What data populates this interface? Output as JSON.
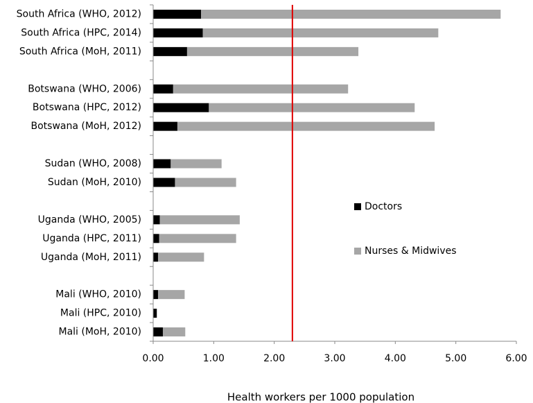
{
  "chart_data": {
    "type": "stacked-barh",
    "x_label": "Health workers per 1000 population",
    "categories": [
      "South Africa (WHO, 2012)",
      "South Africa (HPC, 2014)",
      "South Africa (MoH, 2011)",
      null,
      "Botswana (WHO, 2006)",
      "Botswana (HPC, 2012)",
      "Botswana (MoH, 2012)",
      null,
      "Sudan (WHO, 2008)",
      "Sudan (MoH, 2010)",
      null,
      "Uganda (WHO, 2005)",
      "Uganda (HPC, 2011)",
      "Uganda (MoH, 2011)",
      null,
      "Mali (WHO, 2010)",
      "Mali (HPC, 2010)",
      "Mali (MoH, 2010)"
    ],
    "series": [
      {
        "name": "Doctors",
        "color": "#000000",
        "values": [
          0.79,
          0.82,
          0.56,
          null,
          0.33,
          0.92,
          0.4,
          null,
          0.29,
          0.36,
          null,
          0.11,
          0.1,
          0.08,
          null,
          0.08,
          0.06,
          0.16
        ]
      },
      {
        "name": "Nurses & Midwives",
        "color": "#a6a6a6",
        "values": [
          4.95,
          3.89,
          2.83,
          null,
          2.89,
          3.4,
          4.25,
          null,
          0.84,
          1.01,
          null,
          1.32,
          1.27,
          0.76,
          null,
          0.44,
          0,
          0.37
        ]
      }
    ],
    "xlim": [
      0,
      6
    ],
    "xticks": [
      {
        "value": 0,
        "label": "0.00"
      },
      {
        "value": 1,
        "label": "1.00"
      },
      {
        "value": 2,
        "label": "2.00"
      },
      {
        "value": 3,
        "label": "3.00"
      },
      {
        "value": 4,
        "label": "4.00"
      },
      {
        "value": 5,
        "label": "5.00"
      },
      {
        "value": 6,
        "label": "6.00"
      }
    ],
    "reference_line": {
      "value": 2.3,
      "color": "#e00000"
    },
    "legend_position": "right"
  }
}
